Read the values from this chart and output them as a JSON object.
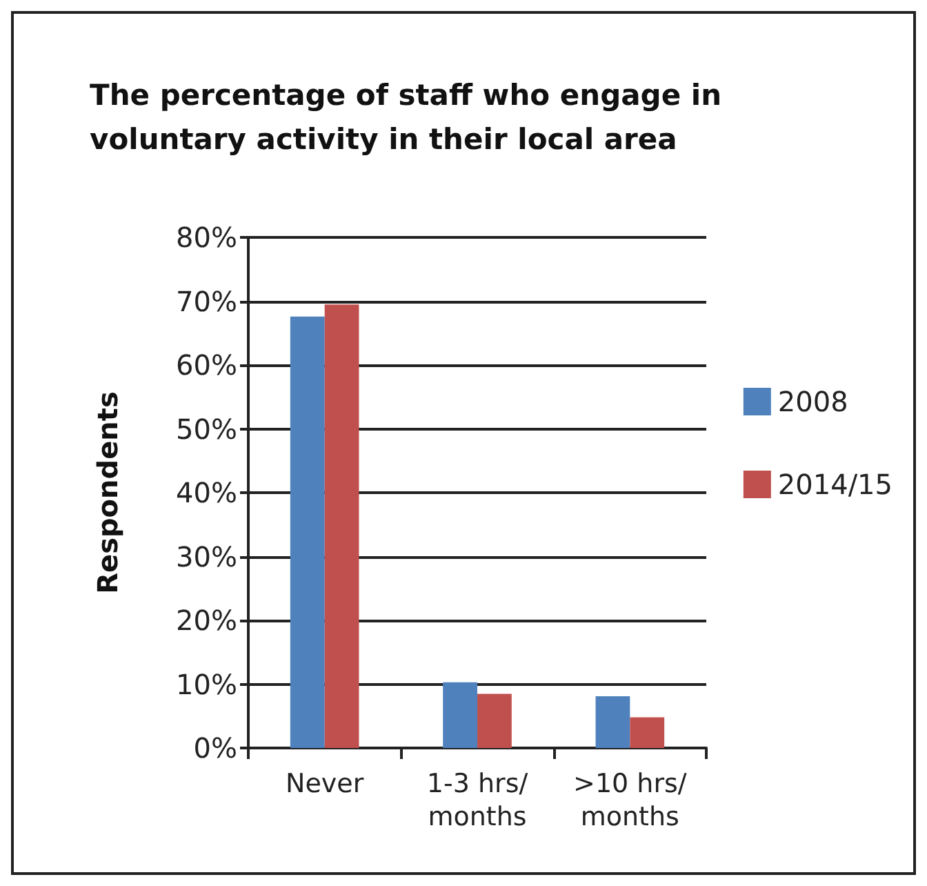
{
  "chart_data": {
    "type": "bar",
    "title": "The percentage of staff who engage in\nvoluntary activity in their local area",
    "ylabel": "Respondents",
    "categories": [
      "Never",
      "1-3 hrs/\nmonths",
      ">10 hrs/\nmonths"
    ],
    "series": [
      {
        "name": "2008",
        "color": "#4f81bd",
        "values": [
          67.6,
          10.3,
          8.1
        ]
      },
      {
        "name": "2014/15",
        "color": "#c0504d",
        "values": [
          69.5,
          8.5,
          4.8
        ]
      }
    ],
    "ylim": [
      0,
      80
    ],
    "yticks": [
      {
        "value": 0,
        "label": "0%"
      },
      {
        "value": 10,
        "label": "10%"
      },
      {
        "value": 20,
        "label": "20%"
      },
      {
        "value": 30,
        "label": "30%"
      },
      {
        "value": 40,
        "label": "40%"
      },
      {
        "value": 50,
        "label": "50%"
      },
      {
        "value": 60,
        "label": "60%"
      },
      {
        "value": 70,
        "label": "70%"
      },
      {
        "value": 80,
        "label": "80%"
      }
    ],
    "grid": "y",
    "legend": "right"
  }
}
